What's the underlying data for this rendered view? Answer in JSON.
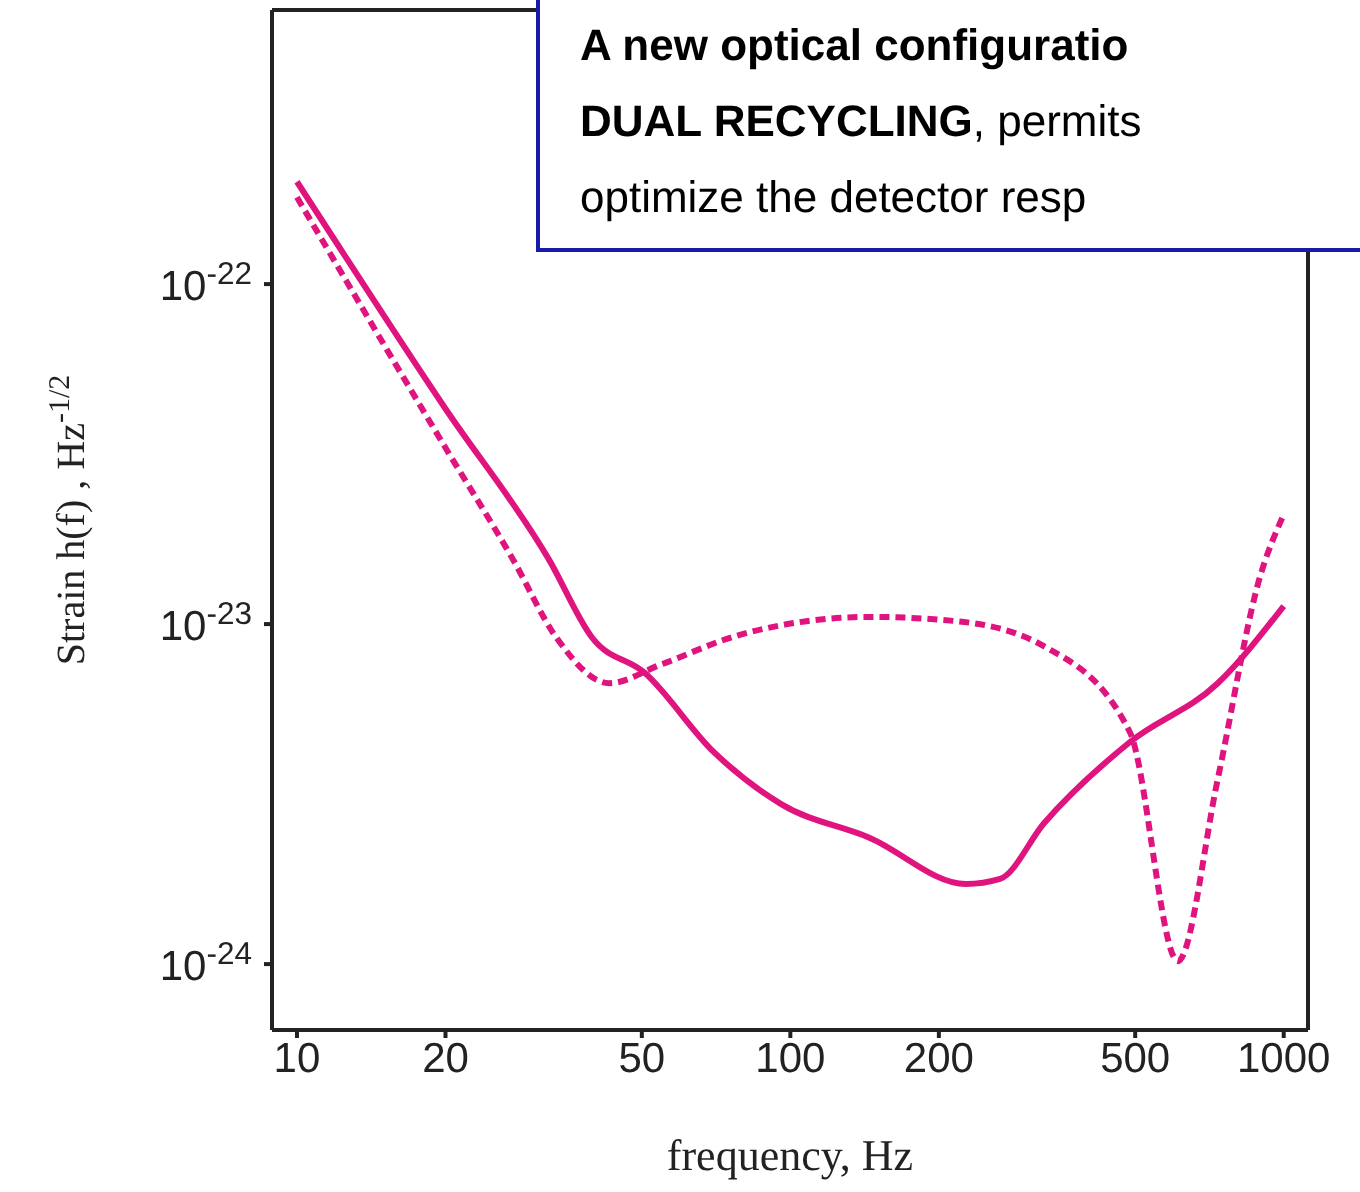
{
  "chart_data": {
    "type": "line",
    "xlabel": "frequency, Hz",
    "ylabel": "Strain h(f) , Hz$^{-1/2}$",
    "log": "xy",
    "xlim": [
      8.9,
      1120
    ],
    "xticks": [
      10,
      20,
      50,
      100,
      200,
      500,
      1000
    ],
    "ylim": [
      6.4e-25,
      6.4e-22
    ],
    "yticks": [
      {
        "value": 1e-24,
        "label": "10$^{-24}$"
      },
      {
        "value": 1e-23,
        "label": "10$^{-23}$"
      },
      {
        "value": 1e-22,
        "label": "10$^{-22}$"
      }
    ],
    "marker": "none",
    "series": [
      {
        "color": "#e0147f",
        "line_style": "solid",
        "x": [
          10,
          20,
          32.4,
          39.7,
          50.6,
          70,
          96,
          145,
          227,
          266,
          327,
          488,
          735,
          1000
        ],
        "values": [
          2e-22,
          4.3e-23,
          1.55e-23,
          9.1e-24,
          7.2e-24,
          4.2e-24,
          2.95e-24,
          2.35e-24,
          1.72e-24,
          1.78e-24,
          2.6e-24,
          4.5e-24,
          6.7e-24,
          1.13e-23
        ]
      },
      {
        "color": "#e0147f",
        "line_style": "dashed",
        "x": [
          10,
          20,
          27.4,
          33.6,
          42.9,
          54.6,
          79,
          145,
          217,
          327,
          488,
          610,
          735,
          893,
          1000
        ],
        "values": [
          1.8e-22,
          3.3e-23,
          1.55e-23,
          9.1e-24,
          6.7e-24,
          7.6e-24,
          9.3e-24,
          1.05e-23,
          1.02e-23,
          8.6e-24,
          4.8e-24,
          1.02e-24,
          3.5e-24,
          1.36e-23,
          2.1e-23
        ]
      }
    ],
    "annotations": [
      "A new optical configuratio",
      "DUAL RECYCLING",
      ", permits",
      "optimize the detector resp"
    ]
  }
}
